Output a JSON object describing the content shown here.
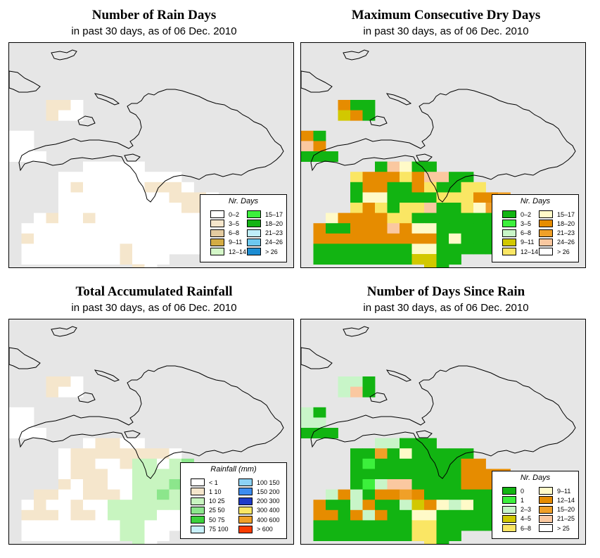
{
  "panels": [
    {
      "title": "Number of Rain Days",
      "subtitle": "in past 30 days, as of  06 Dec. 2010",
      "legend": {
        "title": "Nr. Days",
        "items": [
          {
            "label": "0–2",
            "color": "#ffffff"
          },
          {
            "label": "3–5",
            "color": "#f5e6cc"
          },
          {
            "label": "6–8",
            "color": "#e3cba0"
          },
          {
            "label": "9–11",
            "color": "#d4ac44"
          },
          {
            "label": "12–14",
            "color": "#d4f7c8"
          },
          {
            "label": "15–17",
            "color": "#3cf03c"
          },
          {
            "label": "18–20",
            "color": "#14b414"
          },
          {
            "label": "21–23",
            "color": "#bfeefa"
          },
          {
            "label": "24–26",
            "color": "#6cc8f0"
          },
          {
            "label": "> 26",
            "color": "#1c8cd2"
          }
        ]
      }
    },
    {
      "title": "Maximum Consecutive Dry Days",
      "subtitle": "in past 30 days, as of  06 Dec. 2010",
      "legend": {
        "title": "Nr. Days",
        "items": [
          {
            "label": "0–2",
            "color": "#12b412"
          },
          {
            "label": "3–5",
            "color": "#3cf03c"
          },
          {
            "label": "6–8",
            "color": "#c8f5c8"
          },
          {
            "label": "9–11",
            "color": "#d2c800"
          },
          {
            "label": "12–14",
            "color": "#fae664"
          },
          {
            "label": "15–17",
            "color": "#fffac8"
          },
          {
            "label": "18–20",
            "color": "#e68c00"
          },
          {
            "label": "21–23",
            "color": "#f0a028"
          },
          {
            "label": "24–26",
            "color": "#fac8a0"
          },
          {
            "label": "> 26",
            "color": "#ffffff"
          }
        ]
      }
    },
    {
      "title": "Total Accumulated Rainfall",
      "subtitle": "in past 30 days, as of  06 Dec. 2010",
      "legend": {
        "title": "Rainfall (mm)",
        "items": [
          {
            "label": "< 1",
            "color": "#ffffff"
          },
          {
            "label": "1     10",
            "color": "#f5e6cc"
          },
          {
            "label": "10     25",
            "color": "#c8f5c0"
          },
          {
            "label": "25     50",
            "color": "#8ce68c"
          },
          {
            "label": "50     75",
            "color": "#3cd23c"
          },
          {
            "label": "75   100",
            "color": "#c8f0fa"
          },
          {
            "label": "100   150",
            "color": "#8cd2f5"
          },
          {
            "label": "150   200",
            "color": "#3c8cf0"
          },
          {
            "label": "200   300",
            "color": "#1e3cc8"
          },
          {
            "label": "300   400",
            "color": "#fae664"
          },
          {
            "label": "400   600",
            "color": "#f0a028"
          },
          {
            "label": "> 600",
            "color": "#fa3c00"
          }
        ]
      }
    },
    {
      "title": "Number of Days Since Rain",
      "subtitle": "in past 30 days, as of  06 Dec. 2010",
      "legend": {
        "title": "Nr. Days",
        "items": [
          {
            "label": "0",
            "color": "#12b412"
          },
          {
            "label": "1",
            "color": "#3cf03c"
          },
          {
            "label": "2–3",
            "color": "#c8f5c8"
          },
          {
            "label": "4–5",
            "color": "#d2c800"
          },
          {
            "label": "6–8",
            "color": "#fae664"
          },
          {
            "label": "9–11",
            "color": "#fffac8"
          },
          {
            "label": "12–14",
            "color": "#e68c00"
          },
          {
            "label": "15–20",
            "color": "#f0a028"
          },
          {
            "label": "21–25",
            "color": "#fac8a0"
          },
          {
            "label": "> 25",
            "color": "#ffffff"
          }
        ]
      }
    }
  ]
}
